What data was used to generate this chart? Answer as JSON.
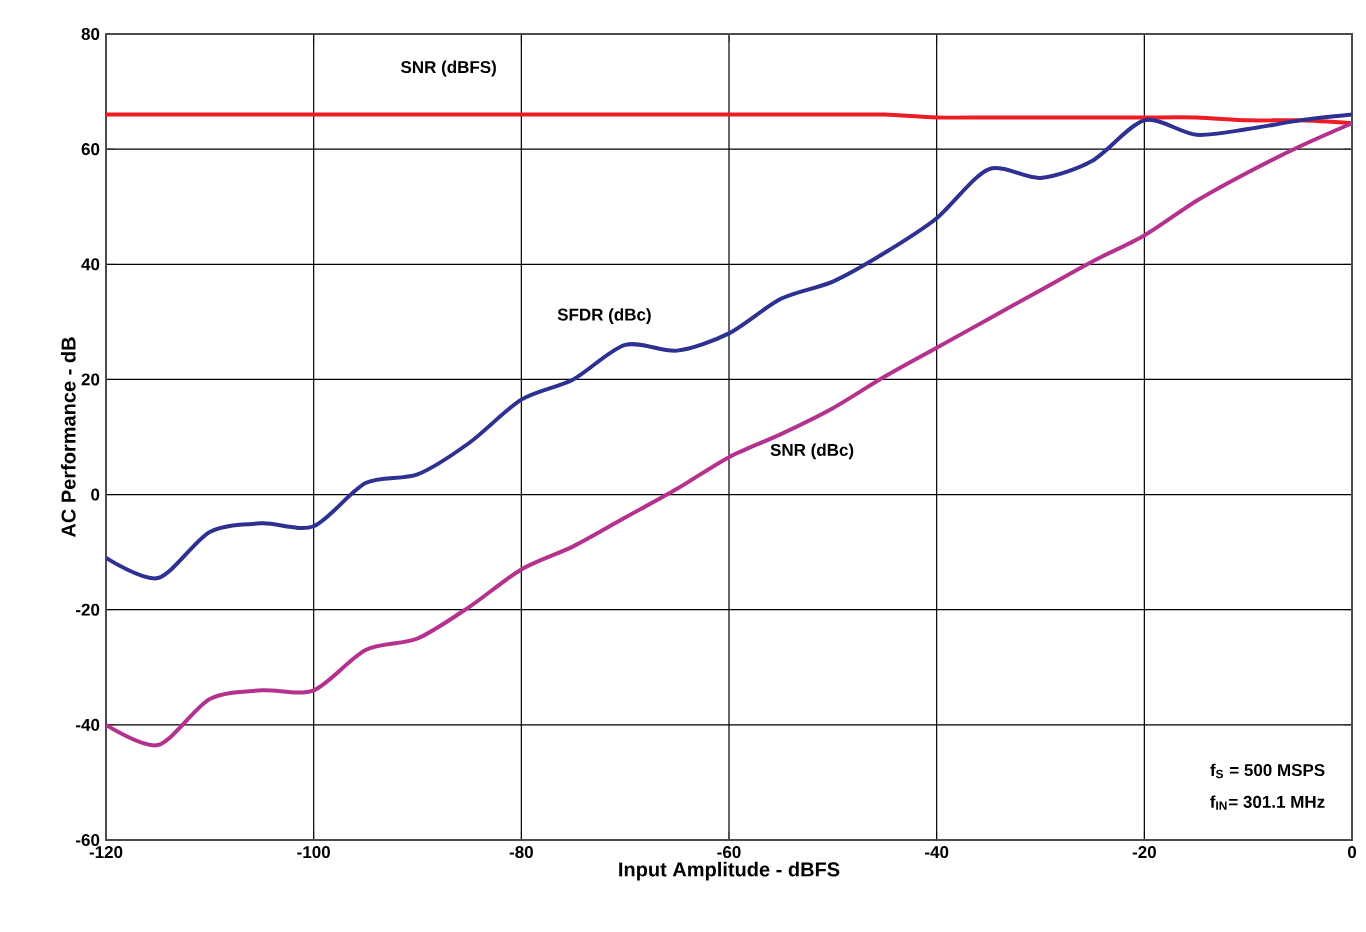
{
  "chart_data": {
    "type": "line",
    "xlabel": "Input Amplitude - dBFS",
    "ylabel": "AC Performance - dB",
    "x": [
      -120,
      -115,
      -110,
      -105,
      -100,
      -95,
      -90,
      -85,
      -80,
      -75,
      -70,
      -65,
      -60,
      -55,
      -50,
      -45,
      -40,
      -35,
      -30,
      -25,
      -20,
      -15,
      -10,
      -5,
      0
    ],
    "series": [
      {
        "name": "SNR (dBFS)",
        "color": "#ee1c25",
        "values": [
          66,
          66,
          66,
          66,
          66,
          66,
          66,
          66,
          66,
          66,
          66,
          66,
          66,
          66,
          66,
          66,
          65.5,
          65.5,
          65.5,
          65.5,
          65.5,
          65.5,
          65,
          65,
          64.5
        ]
      },
      {
        "name": "SFDR (dBc)",
        "color": "#2e3192",
        "values": [
          -11,
          -14.5,
          -6.5,
          -5,
          -5.5,
          2,
          3.5,
          9,
          16.5,
          20,
          26,
          25,
          28,
          34,
          37,
          42,
          48,
          56.5,
          55,
          58,
          65,
          62.5,
          63.5,
          65,
          66
        ]
      },
      {
        "name": "SNR (dBc)",
        "color": "#b5318e",
        "values": [
          -40,
          -43.5,
          -35.5,
          -34,
          -34,
          -27,
          -25,
          -19.5,
          -13,
          -9,
          -4,
          1,
          6.5,
          10.5,
          15,
          20.5,
          25.5,
          30.5,
          35.5,
          40.5,
          45,
          51,
          56,
          60.5,
          64.5
        ]
      }
    ],
    "xlim": [
      -120,
      0
    ],
    "ylim": [
      -60,
      80
    ],
    "xticks": [
      -120,
      -100,
      -80,
      -60,
      -40,
      -20,
      0
    ],
    "yticks": [
      -60,
      -40,
      -20,
      0,
      20,
      40,
      60,
      80
    ],
    "grid": true,
    "legend": false,
    "marker": "none",
    "line_style": "solid",
    "annotations": [
      "f$_{S}$ = 500 MSPS",
      "f$_{IN}$= 301.1 MHz"
    ]
  }
}
